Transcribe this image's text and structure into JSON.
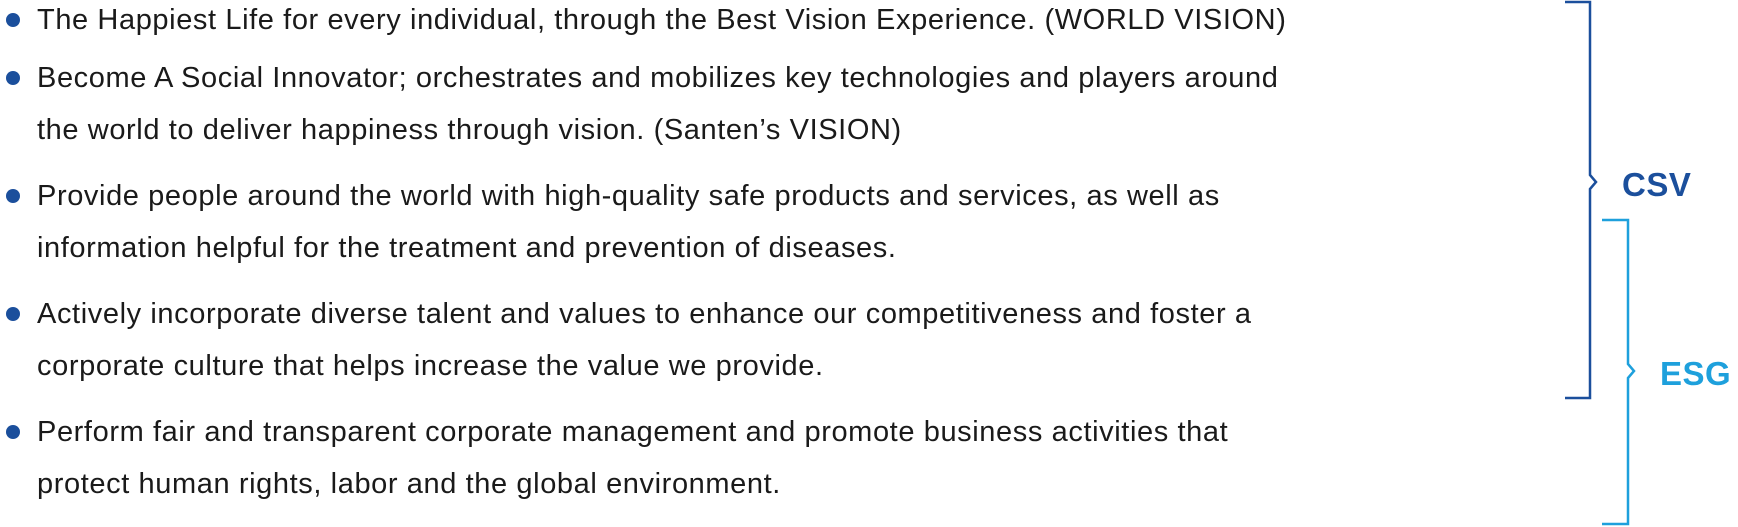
{
  "items": [
    {
      "text": "The Happiest Life for every individual, through the Best Vision Experience. (WORLD VISION)"
    },
    {
      "text": "Become A Social Innovator; orchestrates and mobilizes key technologies and players around\nthe world to deliver happiness through vision. (Santen’s VISION)"
    },
    {
      "text": "Provide people around the world with high-quality safe products and services, as well as\ninformation helpful for the treatment and prevention of diseases."
    },
    {
      "text": "Actively incorporate diverse talent and values to enhance our competitiveness and foster a\ncorporate culture that helps increase the value we provide."
    },
    {
      "text": "Perform fair and transparent corporate management and promote business activities that\nprotect human rights, labor and the global environment."
    }
  ],
  "brackets": {
    "csv": {
      "label": "CSV",
      "color": "#1b4f9c"
    },
    "esg": {
      "label": "ESG",
      "color": "#1ea0dc"
    }
  },
  "colors": {
    "bullet": "#1b4f9c",
    "text": "#1a1a1a"
  }
}
